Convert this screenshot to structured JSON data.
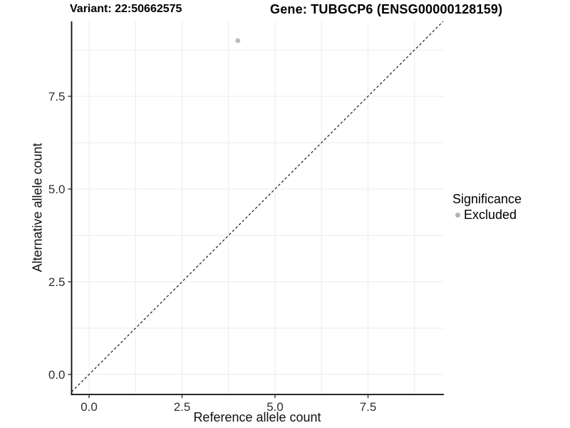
{
  "chart_data": {
    "type": "scatter",
    "titles": {
      "variant": "Variant: 22:50662575",
      "gene": "Gene: TUBGCP6 (ENSG00000128159)"
    },
    "xlabel": "Reference allele count",
    "ylabel": "Alternative allele count",
    "x_ticks": [
      0,
      2.5,
      5,
      7.5
    ],
    "y_ticks": [
      0,
      2.5,
      5,
      7.5
    ],
    "xlim": [
      -0.47,
      9.54
    ],
    "ylim": [
      -0.54,
      9.52
    ],
    "minor_grid_interval": 1.25,
    "grid": true,
    "points": [
      {
        "x": 4,
        "y": 9,
        "significance": "Excluded"
      }
    ],
    "point_radius": 3.4,
    "identity_line": {
      "slope": 1,
      "intercept": 0,
      "style": "dashed",
      "color": "#1a1a1a"
    },
    "legend": {
      "title": "Significance",
      "position": "right",
      "entries": [
        {
          "label": "Excluded",
          "color": "#b3b3b3"
        }
      ]
    },
    "colors": {
      "point": "#bdbdbd",
      "grid": "#ebebeb",
      "axis_line": "#0a0a0a",
      "tick_mark": "#333333",
      "background": "#ffffff"
    }
  }
}
